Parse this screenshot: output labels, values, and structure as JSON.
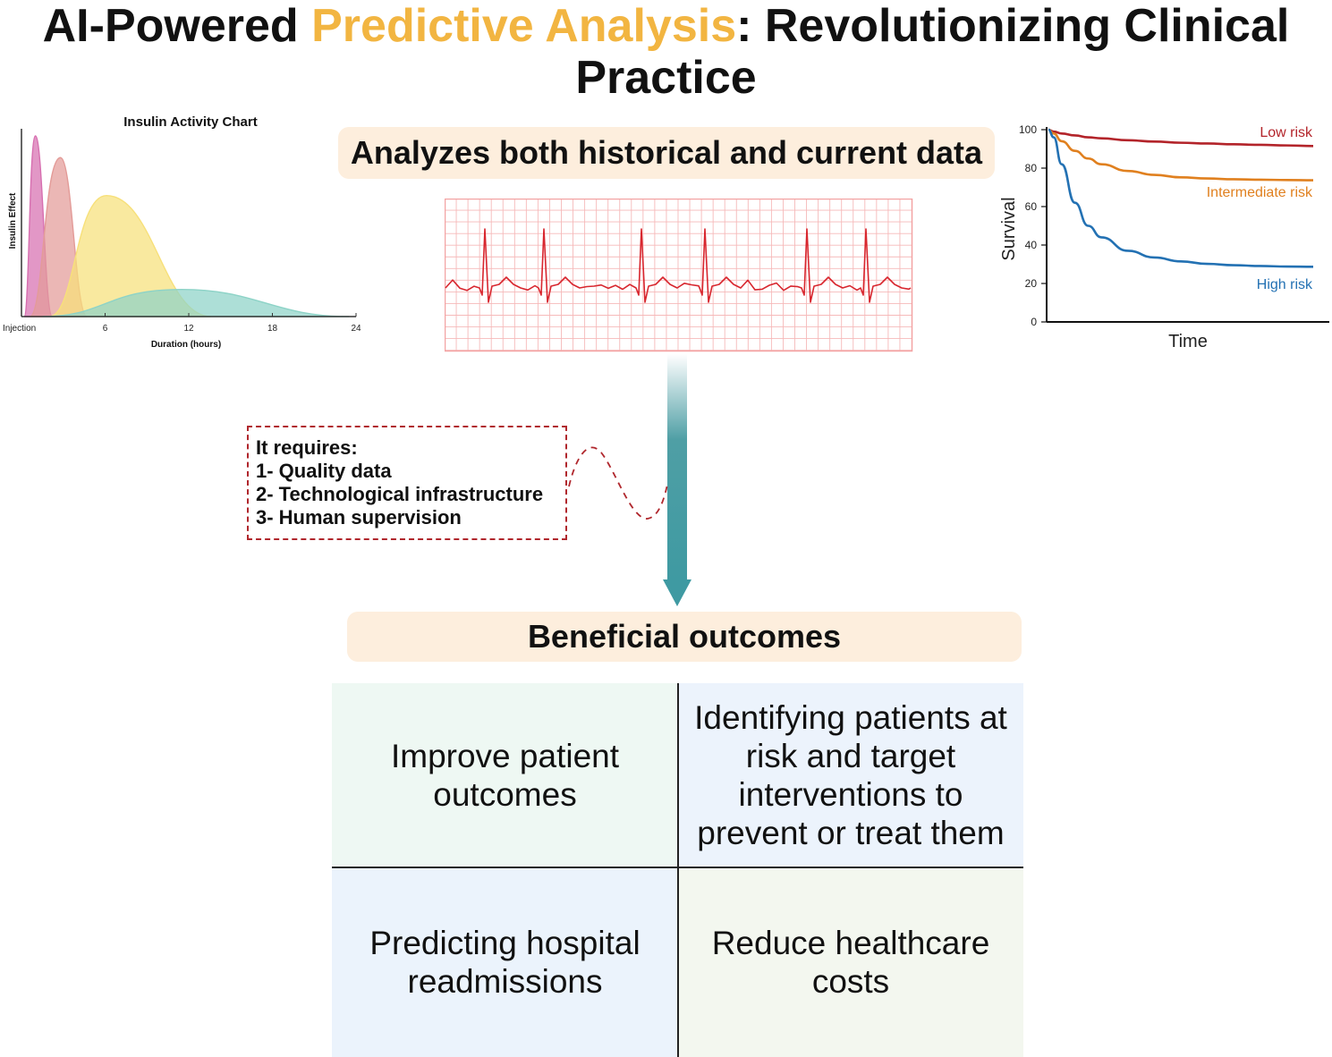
{
  "title": {
    "part1": "AI-Powered ",
    "highlight": "Predictive Analysis",
    "part2": ": Revolutionizing Clinical",
    "line2": "Practice",
    "highlight_color": "#f2b541"
  },
  "data_label": "Analyzes both historical and current data",
  "requirements": {
    "heading": "It requires:",
    "items": [
      "1- Quality data",
      "2- Technological infrastructure",
      "3- Human supervision"
    ]
  },
  "outcomes_label": "Beneficial outcomes",
  "outcomes": [
    "Improve patient outcomes",
    "Identifying patients at risk and target interventions to prevent or treat them",
    "Predicting hospital readmissions",
    "Reduce healthcare costs"
  ],
  "chart_data": [
    {
      "type": "area",
      "title": "Insulin Activity Chart",
      "xlabel": "Duration (hours)",
      "ylabel": "Insulin Effect",
      "x_ticks": [
        {
          "value": 0,
          "label": "Injection"
        },
        {
          "value": 6,
          "label": "6"
        },
        {
          "value": 12,
          "label": "12"
        },
        {
          "value": 18,
          "label": "18"
        },
        {
          "value": 24,
          "label": "24"
        }
      ],
      "xlim": [
        0,
        24
      ],
      "series": [
        {
          "color": "#d76fb0",
          "start": 0.2,
          "peak": 1.0,
          "end": 2.2,
          "height": 1.0
        },
        {
          "color": "#e39b98",
          "start": 0.6,
          "peak": 2.8,
          "end": 4.7,
          "height": 0.88
        },
        {
          "color": "#f7e07a",
          "start": 2.0,
          "peak": 6.1,
          "end": 13.6,
          "height": 0.67
        },
        {
          "color": "#8dd3c7",
          "start": 1.5,
          "peak": 11.5,
          "end": 23.5,
          "height": 0.15
        }
      ]
    },
    {
      "type": "line",
      "xlabel": "Time",
      "ylabel": "Survival",
      "ylim": [
        0,
        100
      ],
      "y_ticks": [
        0,
        20,
        40,
        60,
        80,
        100
      ],
      "x": [
        0,
        0.02,
        0.05,
        0.1,
        0.15,
        0.2,
        0.3,
        0.4,
        0.5,
        0.6,
        0.7,
        0.8,
        0.9,
        1.0
      ],
      "series": [
        {
          "name": "Low risk",
          "color": "#b3242a",
          "values": [
            100,
            99,
            98,
            97,
            96,
            95.5,
            94.5,
            93.8,
            93.2,
            92.8,
            92.4,
            92.1,
            91.8,
            91.5
          ]
        },
        {
          "name": "Intermediate risk",
          "color": "#e0801f",
          "values": [
            100,
            98,
            94,
            89,
            85,
            82,
            78.5,
            76.5,
            75.2,
            74.6,
            74.2,
            74,
            73.8,
            73.7
          ]
        },
        {
          "name": "High risk",
          "color": "#2371b3",
          "values": [
            100,
            96,
            82,
            62,
            50,
            44,
            37,
            33.5,
            31.5,
            30.2,
            29.5,
            29.1,
            28.8,
            28.7
          ]
        }
      ]
    }
  ]
}
